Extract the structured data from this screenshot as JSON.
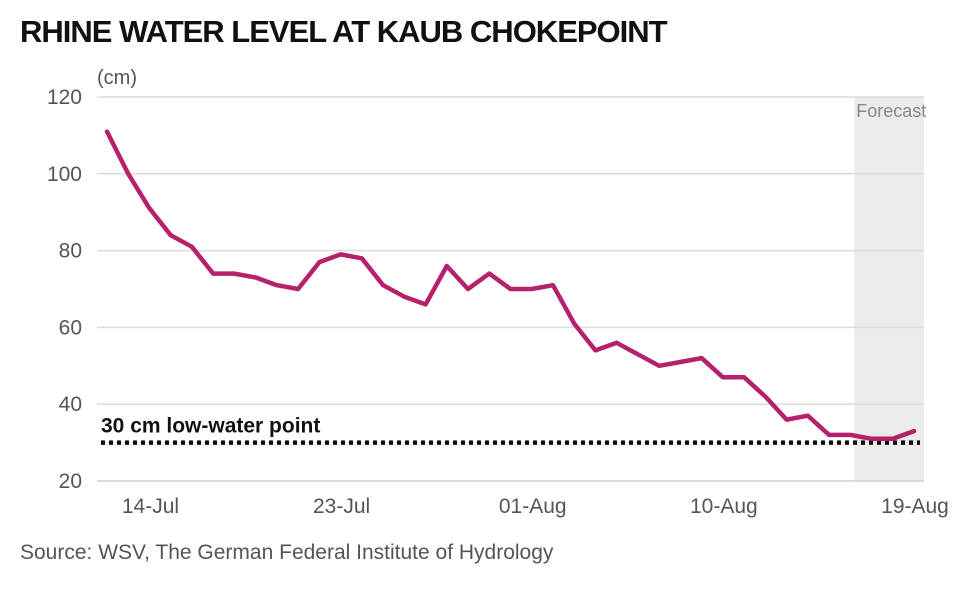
{
  "chart_data": {
    "type": "line",
    "title": "RHINE WATER LEVEL AT KAUB CHOKEPOINT",
    "ylabel": "(cm)",
    "ylim": [
      20,
      120
    ],
    "yticks": [
      20,
      40,
      60,
      80,
      100,
      120
    ],
    "xlim": [
      0,
      38
    ],
    "x_ticks": [
      {
        "label": "14-Jul",
        "x": 2
      },
      {
        "label": "23-Jul",
        "x": 11
      },
      {
        "label": "01-Aug",
        "x": 20
      },
      {
        "label": "10-Aug",
        "x": 29
      },
      {
        "label": "19-Aug",
        "x": 38
      }
    ],
    "forecast": {
      "label": "Forecast",
      "start": 35,
      "end": 38.5
    },
    "threshold": {
      "value": 30,
      "label": "30 cm low-water point"
    },
    "series": [
      {
        "name": "Water level",
        "color": "#b5226b",
        "values": [
          111,
          100,
          91,
          84,
          81,
          74,
          74,
          73,
          71,
          70,
          77,
          79,
          78,
          71,
          68,
          66,
          76,
          70,
          74,
          70,
          70,
          71,
          61,
          54,
          56,
          53,
          50,
          51,
          52,
          47,
          47,
          42,
          36,
          37,
          32,
          32,
          31,
          31,
          33
        ]
      }
    ],
    "source": "Source: WSV, The German Federal Institute of Hydrology"
  }
}
